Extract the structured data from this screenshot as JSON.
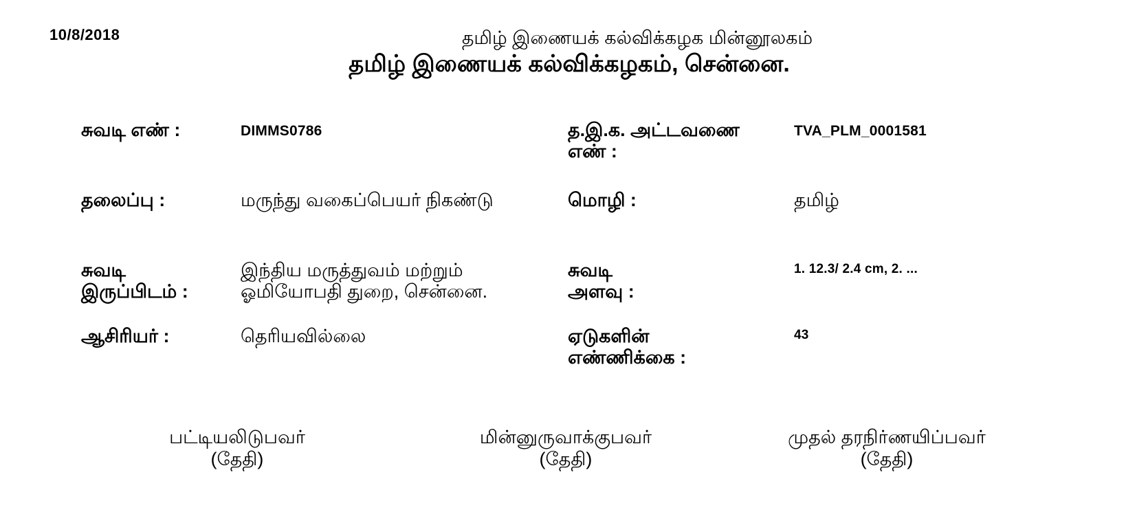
{
  "page": {
    "print_date": "10/8/2018",
    "site_header": "தமிழ் இணையக் கல்விக்கழக மின்னூலகம்",
    "main_title": "தமிழ் இணையக் கல்விக்கழகம், சென்னை."
  },
  "fields": {
    "manuscript_number": {
      "label": "சுவடி எண் :",
      "value": "DIMMS0786"
    },
    "catalogue_number": {
      "label_line1": "த.இ.க. அட்டவணை",
      "label_line2": "எண் :",
      "value": "TVA_PLM_0001581"
    },
    "title": {
      "label": "தலைப்பு :",
      "value": "மருந்து வகைப்பெயர் நிகண்டு"
    },
    "language": {
      "label": "மொழி :",
      "value": "தமிழ்"
    },
    "location": {
      "label_line1": "சுவடி",
      "label_line2": "இருப்பிடம் :",
      "value_line1": "இந்திய மருத்துவம் மற்றும்",
      "value_line2": "ஓமியோபதி துறை, சென்னை."
    },
    "size": {
      "label_line1": "சுவடி",
      "label_line2": "அளவு :",
      "value": "1. 12.3/ 2.4 cm, 2. ..."
    },
    "author": {
      "label": "ஆசிரியர் :",
      "value": "தெரியவில்லை"
    },
    "leaf_count": {
      "label_line1": "ஏடுகளின்",
      "label_line2": "எண்ணிக்கை :",
      "value": "43"
    }
  },
  "signatures": [
    {
      "name": "பட்டியலிடுபவர்",
      "date_label": "(தேதி)"
    },
    {
      "name": "மின்னுருவாக்குபவர்",
      "date_label": "(தேதி)"
    },
    {
      "name": "முதல் தரநிர்ணயிப்பவர்",
      "date_label": "(தேதி)"
    }
  ],
  "colors": {
    "text": "#000000",
    "background": "#ffffff"
  }
}
